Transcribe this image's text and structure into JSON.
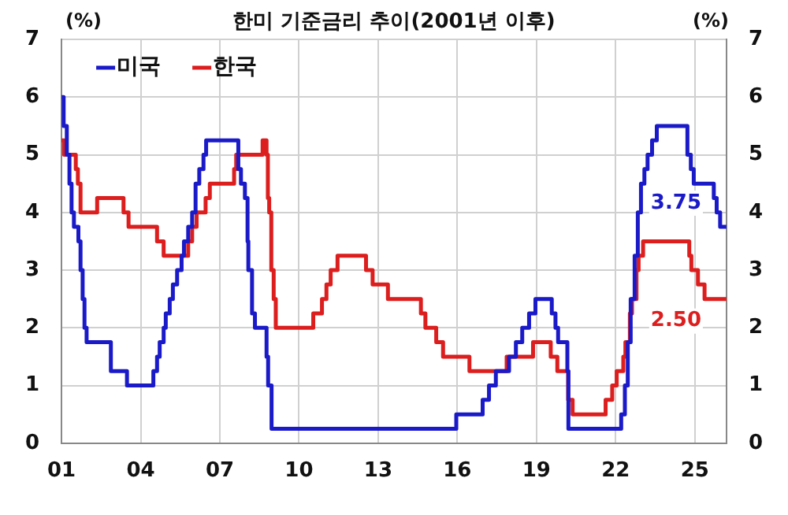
{
  "chart_data": {
    "type": "step",
    "title": "한미 기준금리 추이(2001년 이후)",
    "ylabel": "(%)",
    "y2label": "(%)",
    "xlim": [
      2001,
      2026.2
    ],
    "xticks": [
      {
        "value": 2001,
        "label": "01"
      },
      {
        "value": 2004,
        "label": "04"
      },
      {
        "value": 2007,
        "label": "07"
      },
      {
        "value": 2010,
        "label": "10"
      },
      {
        "value": 2013,
        "label": "13"
      },
      {
        "value": 2016,
        "label": "16"
      },
      {
        "value": 2019,
        "label": "19"
      },
      {
        "value": 2022,
        "label": "22"
      },
      {
        "value": 2025,
        "label": "25"
      }
    ],
    "ylim": [
      0,
      7
    ],
    "yticks": [
      0,
      1,
      2,
      3,
      4,
      5,
      6,
      7
    ],
    "y2lim": [
      0,
      7
    ],
    "y2ticks": [
      0,
      1,
      2,
      3,
      4,
      5,
      6,
      7
    ],
    "grid": true,
    "legend": "top left",
    "series": [
      {
        "name": "미국",
        "color": "#1a1ac8",
        "x": [
          2001,
          2001.08,
          2001.2,
          2001.3,
          2001.38,
          2001.47,
          2001.64,
          2001.72,
          2001.8,
          2001.87,
          2001.95,
          2002.87,
          2003.48,
          2004.48,
          2004.62,
          2004.72,
          2004.87,
          2004.95,
          2005.1,
          2005.22,
          2005.38,
          2005.55,
          2005.64,
          2005.8,
          2005.95,
          2006.08,
          2006.22,
          2006.38,
          2006.48,
          2007.7,
          2007.8,
          2007.95,
          2008.05,
          2008.08,
          2008.22,
          2008.33,
          2008.77,
          2008.83,
          2008.96,
          2015.96,
          2016.96,
          2017.2,
          2017.46,
          2017.96,
          2018.22,
          2018.46,
          2018.72,
          2018.96,
          2019.58,
          2019.72,
          2019.82,
          2020.17,
          2020.21,
          2022.21,
          2022.35,
          2022.46,
          2022.57,
          2022.72,
          2022.84,
          2022.96,
          2023.09,
          2023.21,
          2023.38,
          2023.56,
          2024.72,
          2024.85,
          2024.96,
          2025.72,
          2025.83,
          2025.96,
          2026.2
        ],
        "values": [
          6.0,
          5.5,
          5.0,
          4.5,
          4.0,
          3.75,
          3.5,
          3.0,
          2.5,
          2.0,
          1.75,
          1.25,
          1.0,
          1.25,
          1.5,
          1.75,
          2.0,
          2.25,
          2.5,
          2.75,
          3.0,
          3.25,
          3.5,
          3.75,
          4.0,
          4.5,
          4.75,
          5.0,
          5.25,
          4.75,
          4.5,
          4.25,
          3.5,
          3.0,
          2.25,
          2.0,
          1.5,
          1.0,
          0.25,
          0.5,
          0.75,
          1.0,
          1.25,
          1.5,
          1.75,
          2.0,
          2.25,
          2.5,
          2.25,
          2.0,
          1.75,
          1.25,
          0.25,
          0.5,
          1.0,
          1.75,
          2.5,
          3.25,
          4.0,
          4.5,
          4.75,
          5.0,
          5.25,
          5.5,
          5.0,
          4.75,
          4.5,
          4.25,
          4.0,
          3.75,
          3.75
        ],
        "value_labels": [
          null,
          null,
          null,
          null,
          null,
          null,
          null,
          null,
          null,
          null,
          null,
          null,
          null,
          null,
          null,
          null,
          null,
          null,
          null,
          null,
          null,
          null,
          null,
          null,
          null,
          null,
          null,
          null,
          null,
          null,
          null,
          null,
          null,
          null,
          null,
          null,
          null,
          null,
          null,
          null,
          null,
          null,
          null,
          null,
          null,
          null,
          null,
          null,
          null,
          null,
          null,
          null,
          null,
          null,
          null,
          null,
          null,
          null,
          null,
          null,
          null,
          null,
          null,
          null,
          null,
          null,
          null,
          null,
          null,
          null,
          "3.75"
        ]
      },
      {
        "name": "한국",
        "color": "#dc1e1e",
        "x": [
          2001,
          2001.1,
          2001.54,
          2001.62,
          2001.72,
          2002.35,
          2003.35,
          2003.54,
          2004.62,
          2004.87,
          2005.8,
          2005.95,
          2006.12,
          2006.46,
          2006.62,
          2007.54,
          2007.62,
          2008.62,
          2008.77,
          2008.82,
          2008.87,
          2008.95,
          2009.04,
          2009.12,
          2010.54,
          2010.87,
          2011.04,
          2011.2,
          2011.46,
          2012.54,
          2012.79,
          2013.37,
          2014.62,
          2014.79,
          2015.2,
          2015.46,
          2016.46,
          2017.87,
          2018.87,
          2019.54,
          2019.79,
          2020.2,
          2020.37,
          2021.62,
          2021.87,
          2022.04,
          2022.29,
          2022.37,
          2022.54,
          2022.62,
          2022.79,
          2022.87,
          2023.04,
          2024.79,
          2024.87,
          2025.12,
          2025.37,
          2026.2
        ],
        "values": [
          5.25,
          5.0,
          4.75,
          4.5,
          4.0,
          4.25,
          4.0,
          3.75,
          3.5,
          3.25,
          3.5,
          3.75,
          4.0,
          4.25,
          4.5,
          4.75,
          5.0,
          5.25,
          5.0,
          4.25,
          4.0,
          3.0,
          2.5,
          2.0,
          2.25,
          2.5,
          2.75,
          3.0,
          3.25,
          3.0,
          2.75,
          2.5,
          2.25,
          2.0,
          1.75,
          1.5,
          1.25,
          1.5,
          1.75,
          1.5,
          1.25,
          0.75,
          0.5,
          0.75,
          1.0,
          1.25,
          1.5,
          1.75,
          2.25,
          2.5,
          3.0,
          3.25,
          3.5,
          3.25,
          3.0,
          2.75,
          2.5,
          2.5
        ],
        "value_labels": [
          null,
          null,
          null,
          null,
          null,
          null,
          null,
          null,
          null,
          null,
          null,
          null,
          null,
          null,
          null,
          null,
          null,
          null,
          null,
          null,
          null,
          null,
          null,
          null,
          null,
          null,
          null,
          null,
          null,
          null,
          null,
          null,
          null,
          null,
          null,
          null,
          null,
          null,
          null,
          null,
          null,
          null,
          null,
          null,
          null,
          null,
          null,
          null,
          null,
          null,
          null,
          null,
          null,
          null,
          null,
          null,
          null,
          "2.50"
        ]
      }
    ]
  }
}
